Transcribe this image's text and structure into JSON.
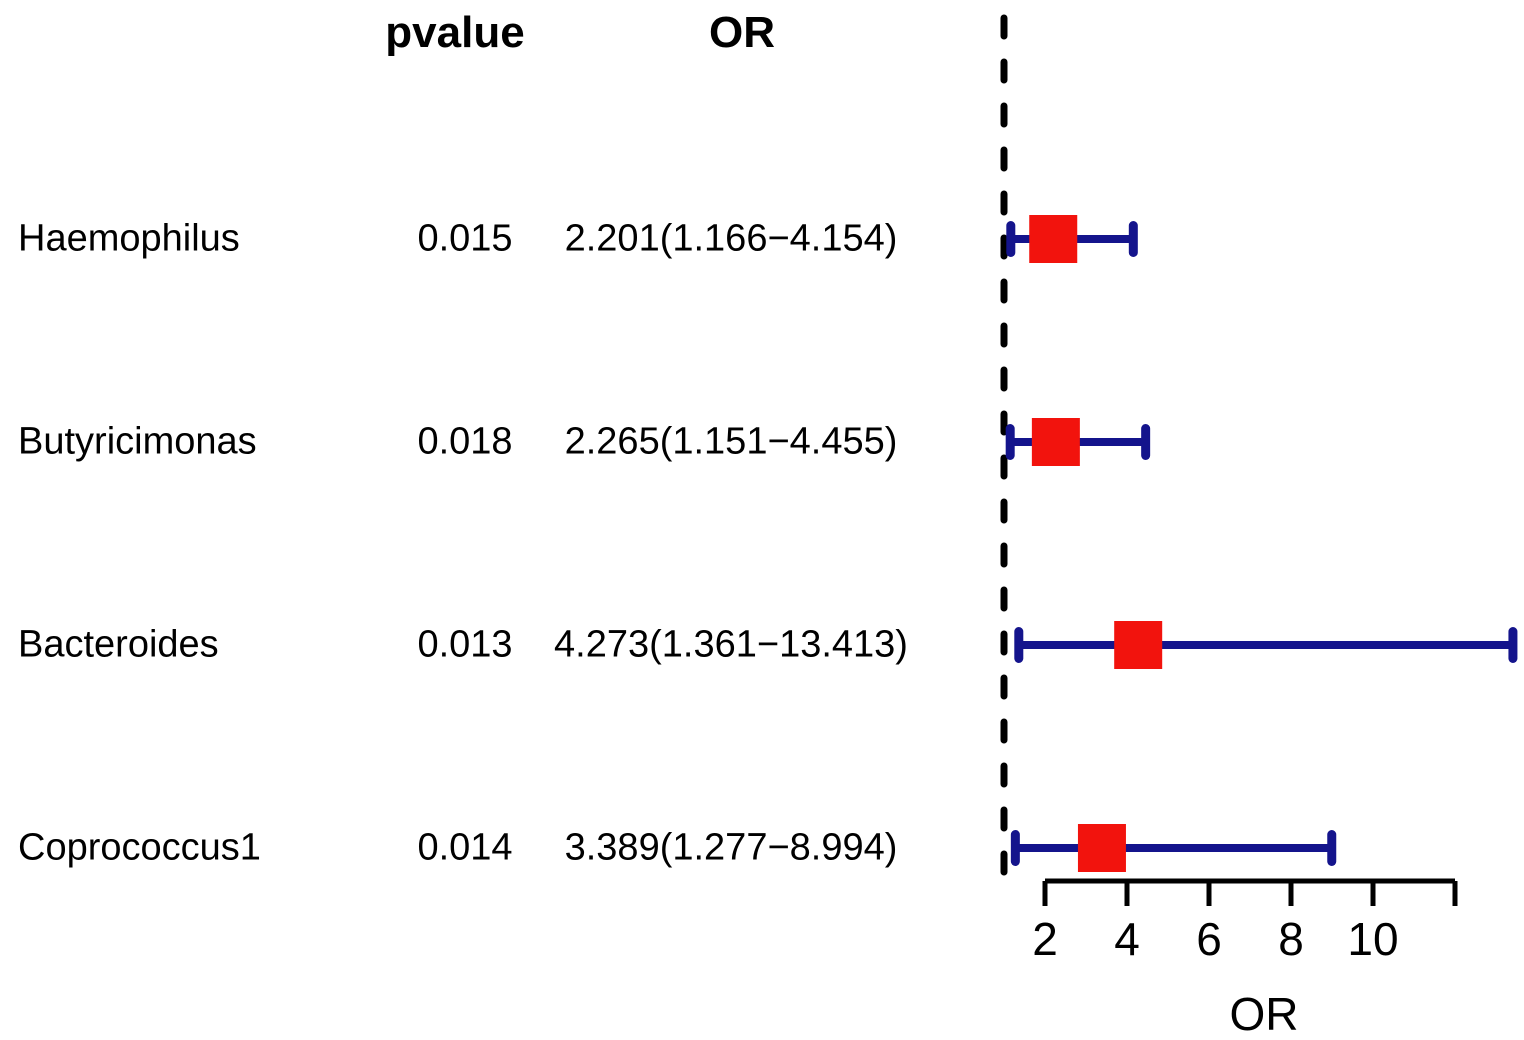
{
  "figure": {
    "background": "#ffffff"
  },
  "chart_data": {
    "type": "forest",
    "title": "",
    "columns": [
      "pvalue",
      "OR"
    ],
    "xlabel": "OR",
    "x_ticks": [
      2,
      4,
      6,
      8,
      10
    ],
    "x_axis_start": 2,
    "x_axis_end": 12,
    "reference_line_x": 1,
    "grid": false,
    "rows": [
      {
        "label": "Haemophilus",
        "pvalue": "0.015",
        "or_ci_text": "2.201(1.166−4.154)",
        "or": 2.201,
        "ci_low": 1.166,
        "ci_high": 4.154
      },
      {
        "label": "Butyricimonas",
        "pvalue": "0.018",
        "or_ci_text": "2.265(1.151−4.455)",
        "or": 2.265,
        "ci_low": 1.151,
        "ci_high": 4.455
      },
      {
        "label": "Bacteroides",
        "pvalue": "0.013",
        "or_ci_text": "4.273(1.361−13.413)",
        "or": 4.273,
        "ci_low": 1.361,
        "ci_high": 13.413
      },
      {
        "label": "Coprococcus1",
        "pvalue": "0.014",
        "or_ci_text": "3.389(1.277−8.994)",
        "or": 3.389,
        "ci_low": 1.277,
        "ci_high": 8.994
      }
    ],
    "colors": {
      "box": "#f2130d",
      "ci_line": "#14148c",
      "reference_line": "#000000",
      "axis": "#000000",
      "text": "#000000"
    }
  }
}
